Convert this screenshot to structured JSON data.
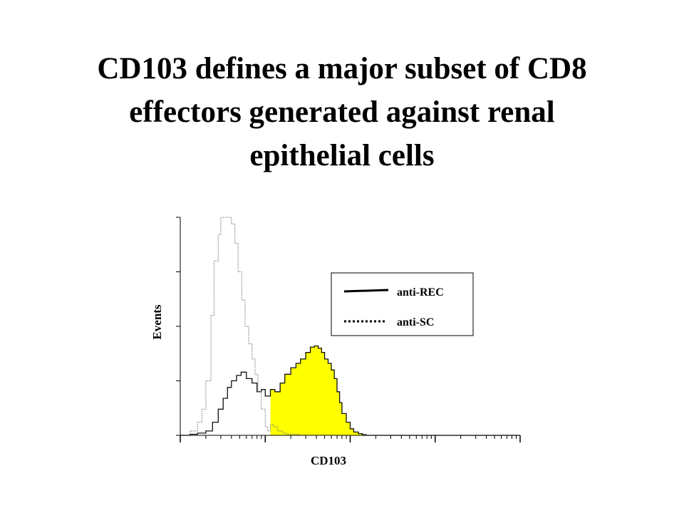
{
  "slide": {
    "title_lines": [
      "CD103 defines a major subset of CD8",
      "effectors generated against renal",
      "epithelial cells"
    ]
  },
  "chart_data": {
    "type": "area",
    "title": "",
    "xlabel": "CD103",
    "ylabel": "Events",
    "xscale": "log",
    "xlim": [
      1,
      10000
    ],
    "ylim": [
      0,
      100
    ],
    "grid": false,
    "legend_position": "top-right",
    "legend": [
      {
        "label": "anti-REC",
        "style": "solid"
      },
      {
        "label": "anti-SC",
        "style": "dotted"
      }
    ],
    "colors": {
      "fill": "#ffff00",
      "rec_line": "#111111",
      "sc_line": "#777777",
      "axis": "#000000"
    },
    "series": [
      {
        "name": "anti-REC",
        "style": "solid",
        "filled": true,
        "x": [
          1.0,
          1.3,
          1.6,
          2.0,
          2.4,
          2.8,
          3.2,
          3.6,
          4.0,
          4.6,
          5.2,
          6.0,
          7.0,
          8.0,
          9.0,
          10.0,
          11.5,
          13.0,
          15.0,
          17.0,
          20.0,
          23.0,
          26.0,
          30.0,
          34.0,
          38.0,
          42.0,
          46.0,
          50.0,
          55.0,
          60.0,
          65.0,
          70.0,
          75.0,
          80.0,
          90.0,
          100.0,
          110.0,
          125.0,
          140.0,
          155.0,
          170.0,
          190.0,
          10000.0
        ],
        "y": [
          0.0,
          0.5,
          1.0,
          2.0,
          6.0,
          12.0,
          17.0,
          22.0,
          25.0,
          27.5,
          29.0,
          26.0,
          24.0,
          20.0,
          21.0,
          18.0,
          21.0,
          20.0,
          24.0,
          28.0,
          31.0,
          33.0,
          35.0,
          38.0,
          40.5,
          41.0,
          40.0,
          38.0,
          35.0,
          33.0,
          30.0,
          26.0,
          20.0,
          15.0,
          10.0,
          6.0,
          3.0,
          1.5,
          0.8,
          0.3,
          0.0,
          0.0,
          0.0,
          0.0
        ]
      },
      {
        "name": "anti-SC",
        "style": "dotted",
        "filled": false,
        "x": [
          1.0,
          1.3,
          1.6,
          1.8,
          2.0,
          2.3,
          2.5,
          2.8,
          3.0,
          3.3,
          3.6,
          4.0,
          4.4,
          4.8,
          5.3,
          5.8,
          6.4,
          7.0,
          7.6,
          8.2,
          9.0,
          10.0,
          10.7,
          11.5,
          12.5,
          14.0,
          16.0,
          18.0,
          21.0,
          25.0,
          30.0,
          40.0,
          60.0,
          100.0,
          10000.0
        ],
        "y": [
          0.0,
          2.0,
          6.0,
          12.0,
          25.0,
          55.0,
          80.0,
          92.0,
          100.0,
          100.0,
          100.0,
          97.0,
          88.0,
          75.0,
          62.0,
          50.0,
          42.0,
          35.0,
          28.0,
          20.0,
          12.0,
          4.0,
          2.0,
          5.0,
          4.0,
          2.0,
          1.0,
          0.5,
          0.5,
          0.0,
          0.0,
          0.0,
          0.0,
          0.0,
          0.0
        ]
      }
    ]
  }
}
